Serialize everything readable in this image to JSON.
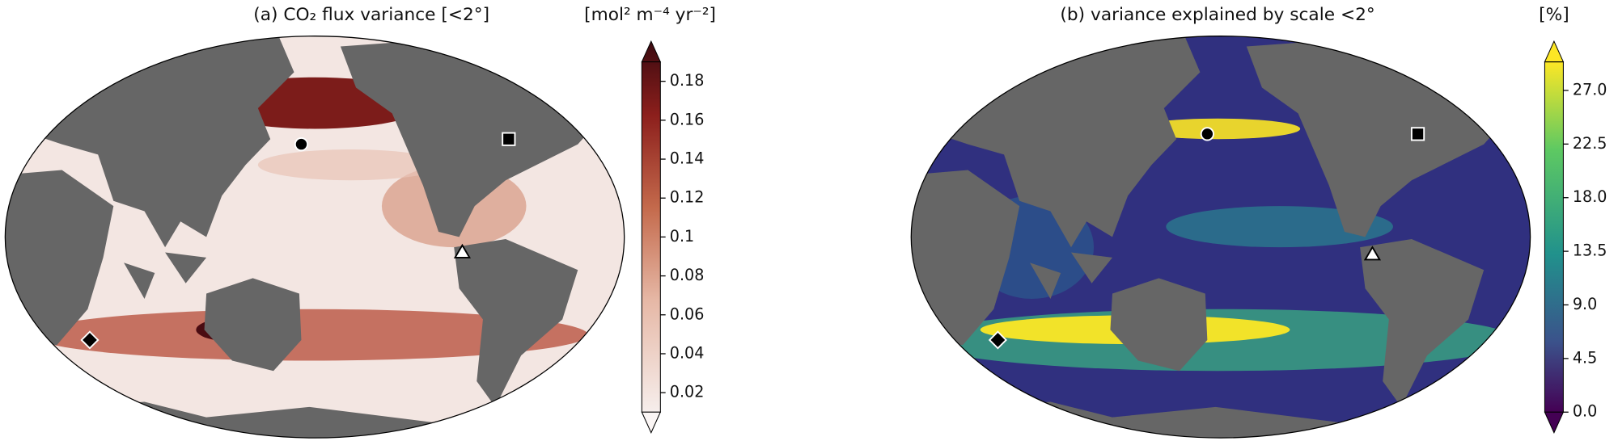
{
  "panels": [
    {
      "title": "(a) CO₂ flux variance [<2°]",
      "colorbar": {
        "label": "[mol² m⁻⁴ yr⁻²]",
        "lim": [
          0.01,
          0.19
        ],
        "ticks": [
          0.02,
          0.04,
          0.06,
          0.08,
          0.1,
          0.12,
          0.14,
          0.16,
          0.18
        ]
      }
    },
    {
      "title": "(b) variance explained by scale <2°",
      "colorbar": {
        "label": "[%]",
        "lim": [
          0,
          29.4
        ],
        "ticks": [
          {
            "value": 0,
            "label": "0.0"
          },
          {
            "value": 4.5,
            "label": "4.5"
          },
          {
            "value": 9,
            "label": "9.0"
          },
          {
            "value": 13.5,
            "label": "13.5"
          },
          {
            "value": 18,
            "label": "18.0"
          },
          {
            "value": 22.5,
            "label": "22.5"
          },
          {
            "value": 27,
            "label": "27.0"
          }
        ]
      }
    }
  ]
}
